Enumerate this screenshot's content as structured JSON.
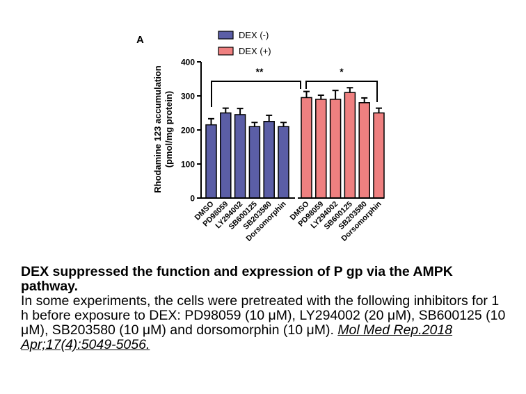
{
  "chart_data": {
    "type": "bar",
    "panel_label": "A",
    "ylabel": "Rhodamine 123 accumulation",
    "ylabel_unit": "(pmol/mg protein)",
    "ylim": [
      0,
      400
    ],
    "yticks": [
      0,
      100,
      200,
      300,
      400
    ],
    "legend_position": "top",
    "legend": [
      {
        "name": "DEX (-)",
        "color": "#5b5ea6"
      },
      {
        "name": "DEX (+)",
        "color": "#ef8080"
      }
    ],
    "series": [
      {
        "name": "DEX (-)",
        "color": "#5b5ea6",
        "categories": [
          "DMSO",
          "PD98059",
          "LY294002",
          "SB600125",
          "SB203580",
          "Dorsomorphin"
        ],
        "values": [
          215,
          250,
          245,
          210,
          225,
          210
        ],
        "errors": [
          18,
          14,
          18,
          12,
          18,
          12
        ]
      },
      {
        "name": "DEX (+)",
        "color": "#ef8080",
        "categories": [
          "DMSO",
          "PD98059",
          "LY294002",
          "SB600125",
          "SB203580",
          "Dorsomorphin"
        ],
        "values": [
          295,
          290,
          290,
          310,
          280,
          250
        ],
        "errors": [
          18,
          12,
          26,
          14,
          14,
          14
        ]
      }
    ],
    "annotations": [
      "**",
      "*"
    ]
  },
  "caption": {
    "title": "DEX suppressed the function and expression of P gp via the AMPK pathway.",
    "body": "In some experiments, the cells were pretreated with the following inhibitors for 1 h before exposure to DEX: PD98059 (10 μM), LY294002 (20 μM), SB600125 (10 μM), SB203580 (10 μM) and dorsomorphin (10 μM).",
    "citation": "Mol Med Rep.2018 Apr;17(4):5049-5056."
  }
}
